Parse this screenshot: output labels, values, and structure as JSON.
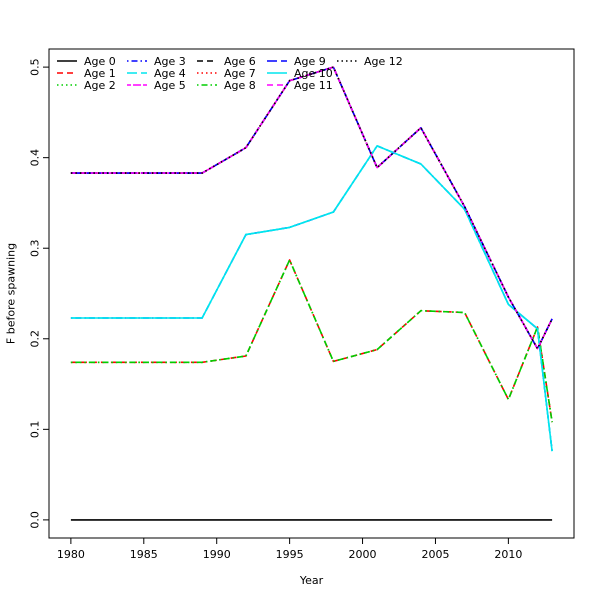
{
  "chart_data": {
    "type": "line",
    "title": "",
    "xlabel": "Year",
    "ylabel": "F before spawning",
    "xlim": [
      1978.5,
      2014.5
    ],
    "ylim": [
      -0.02,
      0.52
    ],
    "xticks": [
      1980,
      1985,
      1990,
      1995,
      2000,
      2005,
      2010
    ],
    "yticks": [
      0.0,
      0.1,
      0.2,
      0.3,
      0.4,
      0.5
    ],
    "xtick_labels": [
      "1980",
      "1985",
      "1990",
      "1995",
      "2000",
      "2005",
      "2010"
    ],
    "ytick_labels": [
      "0.0",
      "0.1",
      "0.2",
      "0.3",
      "0.4",
      "0.5"
    ],
    "grid": false,
    "legend_position": "top-left",
    "x": [
      1980,
      1989,
      1992,
      1995,
      1998,
      2001,
      2004,
      2007,
      2010,
      2012,
      2013
    ],
    "series": [
      {
        "name": "Age 0",
        "color": "#000000",
        "dash": "solid",
        "values": [
          0.0,
          0.0,
          0.0,
          0.0,
          0.0,
          0.0,
          0.0,
          0.0,
          0.0,
          0.0,
          0.0
        ]
      },
      {
        "name": "Age 1",
        "color": "#ff0000",
        "dash": "dashed",
        "values": [
          0.174,
          0.174,
          0.181,
          0.287,
          0.175,
          0.188,
          0.231,
          0.229,
          0.133,
          0.213,
          0.108
        ]
      },
      {
        "name": "Age 2",
        "color": "#00cd00",
        "dash": "dotted",
        "values": [
          0.174,
          0.174,
          0.181,
          0.287,
          0.175,
          0.188,
          0.231,
          0.229,
          0.133,
          0.213,
          0.108
        ]
      },
      {
        "name": "Age 3",
        "color": "#0000ff",
        "dash": "dotdash",
        "values": [
          0.223,
          0.223,
          0.315,
          0.323,
          0.34,
          0.413,
          0.393,
          0.343,
          0.238,
          0.211,
          0.076
        ]
      },
      {
        "name": "Age 4",
        "color": "#00e5ee",
        "dash": "longdash",
        "values": [
          0.223,
          0.223,
          0.315,
          0.323,
          0.34,
          0.413,
          0.393,
          0.343,
          0.238,
          0.211,
          0.076
        ]
      },
      {
        "name": "Age 5",
        "color": "#ff00ff",
        "dash": "twodash",
        "values": [
          0.383,
          0.383,
          0.411,
          0.485,
          0.5,
          0.389,
          0.433,
          0.346,
          0.246,
          0.189,
          0.222
        ]
      },
      {
        "name": "Age 6",
        "color": "#000000",
        "dash": "dashed",
        "values": [
          0.383,
          0.383,
          0.411,
          0.485,
          0.5,
          0.389,
          0.433,
          0.346,
          0.246,
          0.189,
          0.222
        ]
      },
      {
        "name": "Age 7",
        "color": "#ff0000",
        "dash": "dotted",
        "values": [
          0.383,
          0.383,
          0.411,
          0.485,
          0.5,
          0.389,
          0.433,
          0.346,
          0.246,
          0.189,
          0.222
        ]
      },
      {
        "name": "Age 8",
        "color": "#00cd00",
        "dash": "dotdash",
        "values": [
          0.174,
          0.174,
          0.181,
          0.287,
          0.175,
          0.188,
          0.231,
          0.229,
          0.133,
          0.213,
          0.108
        ]
      },
      {
        "name": "Age 9",
        "color": "#0000ff",
        "dash": "longdash",
        "values": [
          0.383,
          0.383,
          0.411,
          0.485,
          0.5,
          0.389,
          0.433,
          0.346,
          0.246,
          0.189,
          0.222
        ]
      },
      {
        "name": "Age 10",
        "color": "#00e5ee",
        "dash": "solid",
        "values": [
          0.223,
          0.223,
          0.315,
          0.323,
          0.34,
          0.413,
          0.393,
          0.343,
          0.238,
          0.211,
          0.076
        ]
      },
      {
        "name": "Age 11",
        "color": "#ff00ff",
        "dash": "dashed",
        "values": [
          0.383,
          0.383,
          0.411,
          0.485,
          0.5,
          0.389,
          0.433,
          0.346,
          0.246,
          0.189,
          0.222
        ]
      },
      {
        "name": "Age 12",
        "color": "#000000",
        "dash": "dotted",
        "values": [
          0.383,
          0.383,
          0.411,
          0.485,
          0.5,
          0.389,
          0.433,
          0.346,
          0.246,
          0.189,
          0.222
        ]
      }
    ]
  }
}
